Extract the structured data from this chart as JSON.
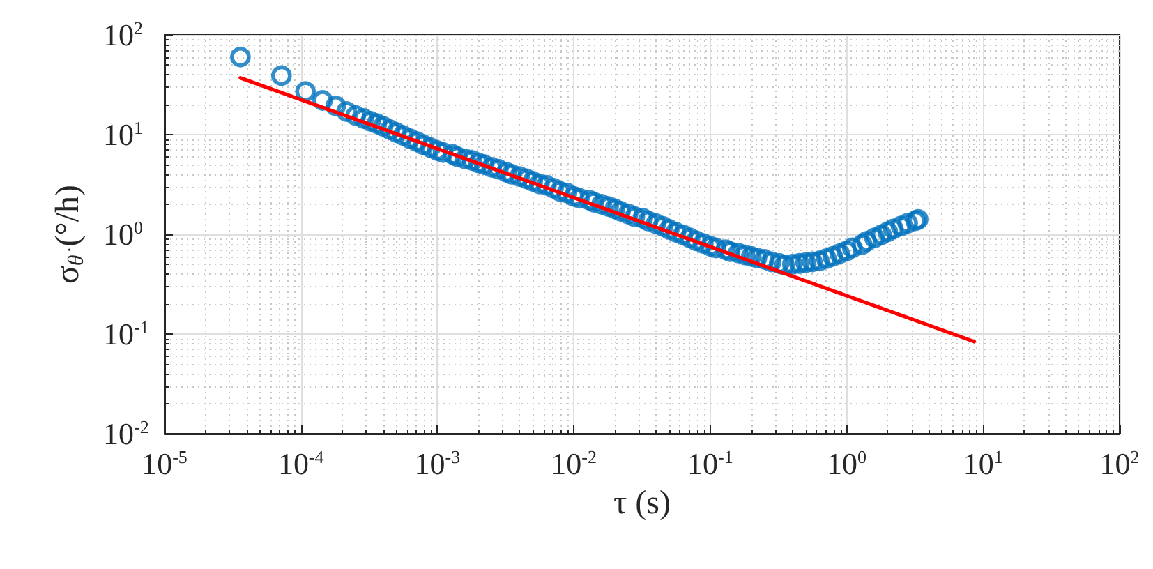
{
  "chart_data": {
    "type": "scatter",
    "xlabel": "τ (s)",
    "ylabel": "σ$_{θ̇}$ (°/h)",
    "log": "xy",
    "grid": true,
    "marker": "circle",
    "xlim": [
      1e-05,
      100
    ],
    "ylim": [
      0.01,
      100
    ],
    "xticks": [
      {
        "value": 1e-05,
        "label": "10$^{-5}$"
      },
      {
        "value": 0.0001,
        "label": "10$^{-4}$"
      },
      {
        "value": 0.001,
        "label": "10$^{-3}$"
      },
      {
        "value": 0.01,
        "label": "10$^{-2}$"
      },
      {
        "value": 0.1,
        "label": "10$^{-1}$"
      },
      {
        "value": 1,
        "label": "10$^{0}$"
      },
      {
        "value": 10,
        "label": "10$^{1}$"
      },
      {
        "value": 100,
        "label": "10$^{2}$"
      }
    ],
    "yticks": [
      {
        "value": 0.01,
        "label": "10$^{-2}$"
      },
      {
        "value": 0.1,
        "label": "10$^{-1}$"
      },
      {
        "value": 1,
        "label": "10$^{0}$"
      },
      {
        "value": 10,
        "label": "10$^{1}$"
      },
      {
        "value": 100,
        "label": "10$^{2}$"
      }
    ],
    "series": [
      {
        "color": "#0072bd",
        "x": [
          3.6e-05,
          7.2e-05,
          0.000108,
          0.000144,
          0.00018,
          0.000216,
          0.000252,
          0.000288,
          0.000324,
          0.00036,
          0.0004,
          0.00045,
          0.0005,
          0.00056,
          0.00063,
          0.00071,
          0.00079,
          0.00089,
          0.001,
          0.0011,
          0.0013,
          0.0014,
          0.0016,
          0.0018,
          0.002,
          0.0022,
          0.0025,
          0.0028,
          0.0032,
          0.0035,
          0.004,
          0.0045,
          0.005,
          0.0056,
          0.0063,
          0.0071,
          0.0079,
          0.0089,
          0.01,
          0.011,
          0.013,
          0.014,
          0.016,
          0.018,
          0.02,
          0.022,
          0.025,
          0.028,
          0.032,
          0.035,
          0.04,
          0.045,
          0.05,
          0.056,
          0.063,
          0.071,
          0.079,
          0.089,
          0.1,
          0.11,
          0.13,
          0.14,
          0.16,
          0.18,
          0.2,
          0.22,
          0.25,
          0.28,
          0.32,
          0.35,
          0.4,
          0.45,
          0.5,
          0.56,
          0.63,
          0.71,
          0.79,
          0.89,
          1.0,
          1.1,
          1.3,
          1.4,
          1.6,
          1.8,
          2.0,
          2.2,
          2.5,
          2.8,
          3.2,
          3.34
        ],
        "values": [
          60,
          39,
          27,
          22,
          19.4,
          17,
          15.5,
          14.5,
          13.6,
          12.9,
          12.1,
          11.2,
          10.5,
          9.8,
          9.1,
          8.5,
          7.9,
          7.4,
          6.9,
          6.6,
          6.3,
          6.0,
          5.7,
          5.5,
          5.2,
          5.0,
          4.7,
          4.5,
          4.2,
          4.0,
          3.8,
          3.6,
          3.4,
          3.2,
          3.1,
          2.9,
          2.7,
          2.6,
          2.4,
          2.3,
          2.2,
          2.1,
          2.0,
          1.9,
          1.8,
          1.7,
          1.6,
          1.5,
          1.45,
          1.36,
          1.28,
          1.2,
          1.12,
          1.05,
          0.99,
          0.92,
          0.86,
          0.81,
          0.76,
          0.73,
          0.7,
          0.67,
          0.65,
          0.62,
          0.6,
          0.58,
          0.56,
          0.53,
          0.51,
          0.49,
          0.5,
          0.51,
          0.52,
          0.53,
          0.54,
          0.57,
          0.6,
          0.64,
          0.68,
          0.73,
          0.79,
          0.85,
          0.92,
          0.99,
          1.06,
          1.13,
          1.21,
          1.29,
          1.37,
          1.41
        ]
      },
      {
        "type": "line",
        "color": "#ff0000",
        "marker": "none",
        "line_style": "solid",
        "x": [
          3.6e-05,
          8.6
        ],
        "values": [
          37,
          0.084
        ]
      }
    ]
  }
}
